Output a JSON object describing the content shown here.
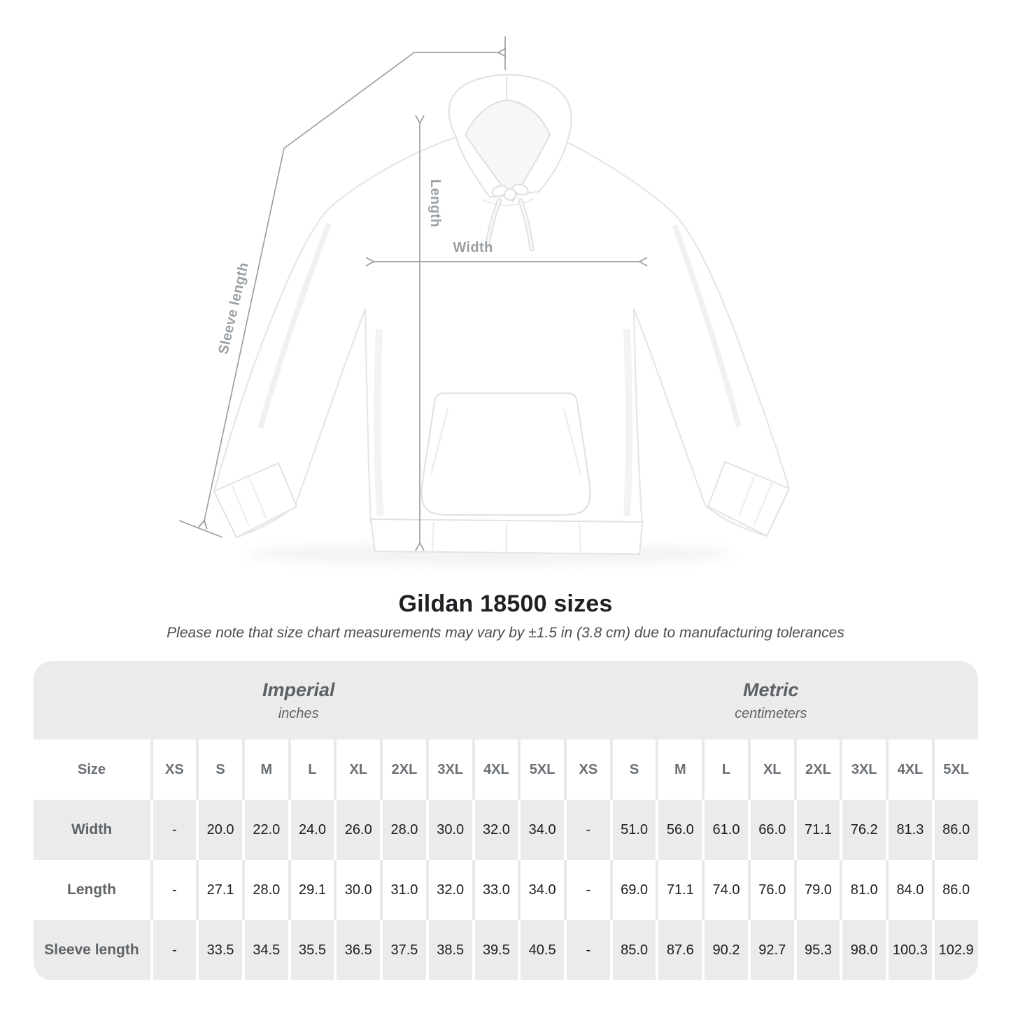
{
  "title": "Gildan 18500 sizes",
  "subtitle": "Please note that size chart measurements may vary by ±1.5 in (3.8 cm) due to manufacturing tolerances",
  "figure": {
    "annotations": {
      "length": "Length",
      "width": "Width",
      "sleeve_length": "Sleeve length"
    },
    "colors": {
      "annotation_line": "#9aa0a4",
      "garment_outline": "#e6e6e6"
    }
  },
  "chart_data": {
    "type": "table",
    "title": "Gildan 18500 sizes",
    "size_header_label": "Size",
    "unit_groups": [
      {
        "label": "Imperial",
        "sublabel": "inches"
      },
      {
        "label": "Metric",
        "sublabel": "centimeters"
      }
    ],
    "sizes": [
      "XS",
      "S",
      "M",
      "L",
      "XL",
      "2XL",
      "3XL",
      "4XL",
      "5XL"
    ],
    "rows": [
      {
        "label": "Width",
        "imperial": [
          "-",
          "20.0",
          "22.0",
          "24.0",
          "26.0",
          "28.0",
          "30.0",
          "32.0",
          "34.0"
        ],
        "metric": [
          "-",
          "51.0",
          "56.0",
          "61.0",
          "66.0",
          "71.1",
          "76.2",
          "81.3",
          "86.0"
        ]
      },
      {
        "label": "Length",
        "imperial": [
          "-",
          "27.1",
          "28.0",
          "29.1",
          "30.0",
          "31.0",
          "32.0",
          "33.0",
          "34.0"
        ],
        "metric": [
          "-",
          "69.0",
          "71.1",
          "74.0",
          "76.0",
          "79.0",
          "81.0",
          "84.0",
          "86.0"
        ]
      },
      {
        "label": "Sleeve length",
        "imperial": [
          "-",
          "33.5",
          "34.5",
          "35.5",
          "36.5",
          "37.5",
          "38.5",
          "39.5",
          "40.5"
        ],
        "metric": [
          "-",
          "85.0",
          "87.6",
          "90.2",
          "92.7",
          "95.3",
          "98.0",
          "100.3",
          "102.9"
        ]
      }
    ],
    "layout": {
      "table_background": "#ebebeb",
      "row_stripe": "alternating white/gray"
    }
  }
}
